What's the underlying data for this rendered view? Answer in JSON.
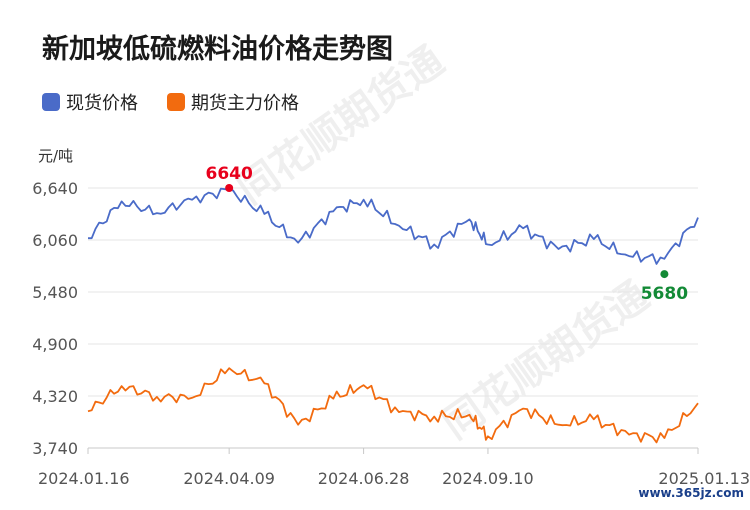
{
  "chart_data": {
    "type": "line",
    "title": "新加坡低硫燃料油价格走势图",
    "ylabel": "元/吨",
    "ylim": [
      3740,
      6640
    ],
    "yticks": [
      "6,640",
      "6,060",
      "5,480",
      "4,900",
      "4,320",
      "3,740"
    ],
    "ytick_values": [
      6640,
      6060,
      5480,
      4900,
      4320,
      3740
    ],
    "xticks": [
      "2024.01.16",
      "2024.04.09",
      "2024.06.28",
      "2024.09.10",
      "2025.01.13"
    ],
    "x": [
      "2024.01.16",
      "2024.02.05",
      "2024.02.26",
      "2024.03.18",
      "2024.04.09",
      "2024.04.30",
      "2024.05.20",
      "2024.06.10",
      "2024.06.28",
      "2024.07.19",
      "2024.08.09",
      "2024.08.30",
      "2024.09.10",
      "2024.10.01",
      "2024.10.22",
      "2024.11.12",
      "2024.12.03",
      "2024.12.24",
      "2025.01.13"
    ],
    "grid": true,
    "legend_position": "top-left",
    "series": [
      {
        "name": "现货价格",
        "color": "#4a6bc8",
        "values": [
          6080,
          6490,
          6360,
          6510,
          6620,
          6350,
          6030,
          6380,
          6510,
          6220,
          6010,
          6290,
          6010,
          6190,
          5960,
          6070,
          5880,
          5850,
          6310
        ]
      },
      {
        "name": "期货主力价格",
        "color": "#f26b0f",
        "values": [
          4150,
          4430,
          4310,
          4300,
          4630,
          4460,
          4000,
          4290,
          4440,
          4140,
          4090,
          4110,
          3870,
          4180,
          4000,
          4060,
          3890,
          3850,
          4240
        ]
      }
    ],
    "annotations": [
      {
        "text": "6640",
        "x": "2024.04.09",
        "value": 6640,
        "color": "#e8001c"
      },
      {
        "text": "5680",
        "x": "2024.12.24",
        "value": 5680,
        "color": "#138a36"
      }
    ]
  },
  "watermark": "同花顺期货通",
  "site_label": "www.365jz.com"
}
